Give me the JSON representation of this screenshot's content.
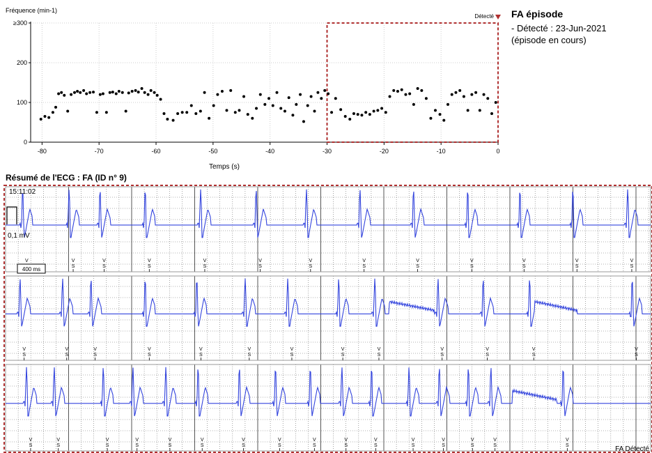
{
  "chart_data": [
    {
      "type": "scatter",
      "ylabel": "Fréquence (min-1)",
      "xlabel": "Temps (s)",
      "xlim": [
        -82,
        0
      ],
      "ylim": [
        0,
        300
      ],
      "x_ticks": [
        -80,
        -70,
        -60,
        -50,
        -40,
        -30,
        -20,
        -10,
        0
      ],
      "y_ticks": [
        0,
        100,
        200,
        300
      ],
      "y_tick_labels": [
        "0",
        "100",
        "200",
        "≥300"
      ],
      "detected_label": "Détecté",
      "detected_marker_color": "#b03030",
      "highlight_box": {
        "x_start": -30,
        "x_end": 0,
        "y_max": 300,
        "color": "#b03030"
      },
      "points": {
        "x": [
          -80.2,
          -79.5,
          -78.8,
          -78.1,
          -77.6,
          -77.1,
          -76.6,
          -76.1,
          -75.5,
          -74.9,
          -74.3,
          -73.8,
          -73.3,
          -72.7,
          -72.2,
          -71.6,
          -71.0,
          -70.4,
          -69.8,
          -69.3,
          -68.7,
          -68.1,
          -67.6,
          -67.0,
          -66.5,
          -65.9,
          -65.3,
          -64.8,
          -64.2,
          -63.6,
          -63.1,
          -62.5,
          -62.0,
          -61.4,
          -60.9,
          -60.3,
          -59.8,
          -59.2,
          -58.6,
          -58.0,
          -57.0,
          -56.2,
          -55.4,
          -54.6,
          -53.8,
          -53.0,
          -52.2,
          -51.5,
          -50.7,
          -49.9,
          -49.2,
          -48.4,
          -47.6,
          -46.9,
          -46.1,
          -45.4,
          -44.6,
          -43.9,
          -43.1,
          -42.4,
          -41.7,
          -40.9,
          -40.2,
          -39.5,
          -38.8,
          -38.1,
          -37.4,
          -36.7,
          -36.0,
          -35.4,
          -34.7,
          -34.1,
          -33.4,
          -32.8,
          -32.2,
          -31.6,
          -31.0,
          -30.4,
          -29.8,
          -29.2,
          -28.5,
          -27.6,
          -26.8,
          -26.0,
          -25.3,
          -24.6,
          -23.9,
          -23.2,
          -22.5,
          -21.8,
          -21.1,
          -20.4,
          -19.7,
          -19.0,
          -18.3,
          -17.6,
          -16.9,
          -16.2,
          -15.5,
          -14.8,
          -14.1,
          -13.4,
          -12.6,
          -11.8,
          -11.0,
          -10.2,
          -9.5,
          -8.8,
          -8.1,
          -7.4,
          -6.7,
          -6.0,
          -5.3,
          -4.6,
          -3.9,
          -3.2,
          -2.5,
          -1.8,
          -1.1,
          -0.4
        ],
        "y": [
          58,
          65,
          62,
          75,
          88,
          122,
          125,
          118,
          78,
          120,
          125,
          128,
          125,
          130,
          122,
          125,
          126,
          75,
          120,
          122,
          75,
          125,
          126,
          122,
          128,
          125,
          78,
          124,
          128,
          130,
          126,
          135,
          125,
          120,
          130,
          125,
          118,
          108,
          72,
          58,
          55,
          72,
          75,
          75,
          92,
          72,
          78,
          125,
          60,
          92,
          120,
          128,
          80,
          130,
          75,
          80,
          115,
          70,
          60,
          85,
          120,
          95,
          110,
          92,
          125,
          85,
          78,
          112,
          68,
          95,
          120,
          52,
          92,
          115,
          78,
          125,
          110,
          130,
          122,
          75,
          110,
          82,
          65,
          58,
          72,
          70,
          68,
          75,
          70,
          78,
          80,
          85,
          75,
          115,
          130,
          128,
          132,
          120,
          122,
          95,
          135,
          130,
          110,
          60,
          80,
          70,
          55,
          95,
          120,
          125,
          130,
          115,
          80,
          120,
          125,
          80,
          120,
          110,
          72,
          100
        ]
      }
    },
    {
      "type": "line",
      "title": "Résumé de l'ECG : FA (ID n° 9)",
      "timestamp": "15:11:02",
      "scale_amplitude_label": "0,1 mV",
      "scale_time_label": "400 ms",
      "end_label": "FA Détecté",
      "beat_marker_top": "V",
      "beat_marker_bottom": "S",
      "trace_color": "#3344dd",
      "grid_color": "#666666",
      "border_color": "#b03030",
      "strips": [
        {
          "row": 1,
          "beats_frac": [
            0.022,
            0.094,
            0.142,
            0.212,
            0.298,
            0.384,
            0.462,
            0.545,
            0.628,
            0.712,
            0.793,
            0.875,
            0.96
          ],
          "flat_segments": []
        },
        {
          "row": 2,
          "beats_frac": [
            0.018,
            0.084,
            0.128,
            0.212,
            0.292,
            0.367,
            0.433,
            0.512,
            0.568,
            0.666,
            0.736,
            0.808,
            0.967
          ],
          "flat_segments": [
            [
              0.594,
              0.665
            ],
            [
              0.82,
              0.886
            ]
          ]
        },
        {
          "row": 3,
          "beats_frac": [
            0.028,
            0.071,
            0.147,
            0.193,
            0.244,
            0.294,
            0.358,
            0.414,
            0.468,
            0.517,
            0.563,
            0.621,
            0.668,
            0.713,
            0.748,
            0.86
          ],
          "flat_segments": [
            [
              0.786,
              0.855
            ]
          ]
        }
      ]
    }
  ],
  "info": {
    "title": "FA épisode",
    "line1": "- Détecté : 23-Jun-2021",
    "line2": "(épisode en cours)"
  }
}
